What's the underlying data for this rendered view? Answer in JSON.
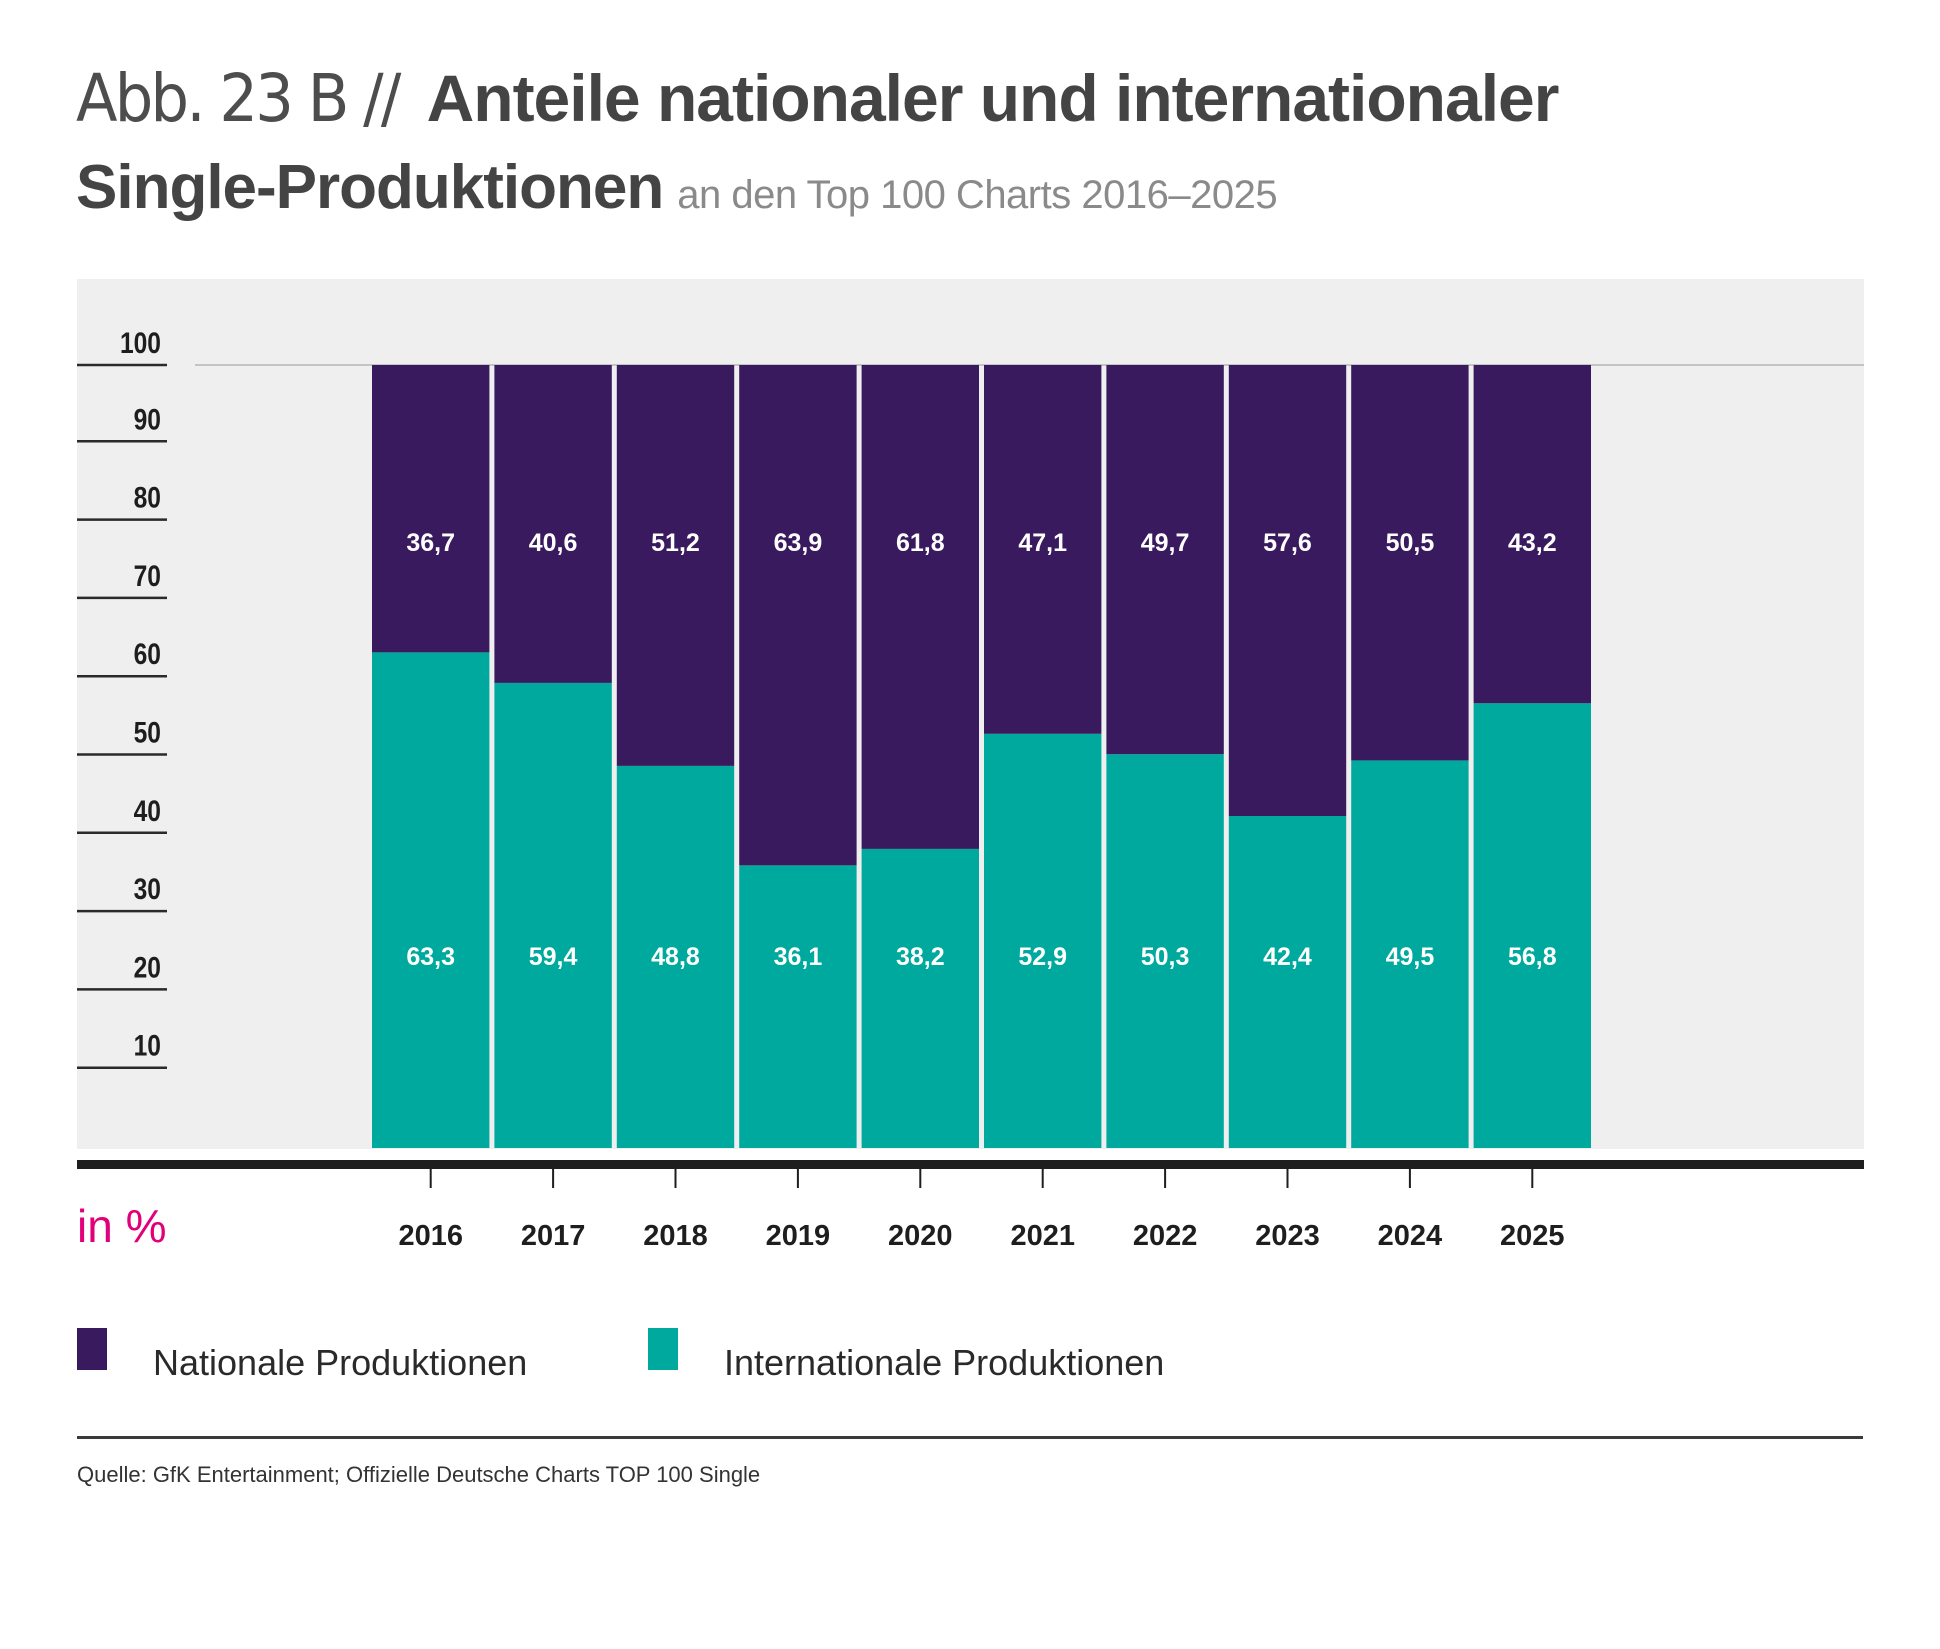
{
  "header": {
    "prefix": "Abb. 23 B // ",
    "title_bold_line1": "Anteile nationaler und internationaler",
    "title_bold_line2": "Single-Produktionen",
    "subtitle": "an den Top 100 Charts 2016–2025"
  },
  "colors": {
    "national": "#3a1a5e",
    "international": "#00a99d",
    "accent": "#e2007a",
    "plot_background": "#efefef"
  },
  "unit_label": "in %",
  "legend": [
    {
      "label": "Nationale Produktionen",
      "color": "#3a1a5e"
    },
    {
      "label": "Internationale Produktionen",
      "color": "#00a99d"
    }
  ],
  "source": "Quelle: GfK Entertainment; Offizielle Deutsche Charts TOP 100 Single",
  "chart_data": {
    "type": "bar",
    "stacked": true,
    "title": "Anteile nationaler und internationaler Single-Produktionen an den Top 100 Charts 2016–2025",
    "xlabel": "",
    "ylabel": "in %",
    "ylim": [
      0,
      100
    ],
    "yticks": [
      10,
      20,
      30,
      40,
      50,
      60,
      70,
      80,
      90,
      100
    ],
    "grid": false,
    "legend_position": "bottom-left",
    "categories": [
      "2016",
      "2017",
      "2018",
      "2019",
      "2020",
      "2021",
      "2022",
      "2023",
      "2024",
      "2025"
    ],
    "series": [
      {
        "name": "Internationale Produktionen",
        "values": [
          63.3,
          59.4,
          48.8,
          36.1,
          38.2,
          52.9,
          50.3,
          42.4,
          49.5,
          56.8
        ],
        "labels": [
          "63,3",
          "59,4",
          "48,8",
          "36,1",
          "38,2",
          "52,9",
          "50,3",
          "42,4",
          "49,5",
          "56,8"
        ]
      },
      {
        "name": "Nationale Produktionen",
        "values": [
          36.7,
          40.6,
          51.2,
          63.9,
          61.8,
          47.1,
          49.7,
          57.6,
          50.5,
          43.2
        ],
        "labels": [
          "36,7",
          "40,6",
          "51,2",
          "63,9",
          "61,8",
          "47,1",
          "49,7",
          "57,6",
          "50,5",
          "43,2"
        ]
      }
    ]
  }
}
